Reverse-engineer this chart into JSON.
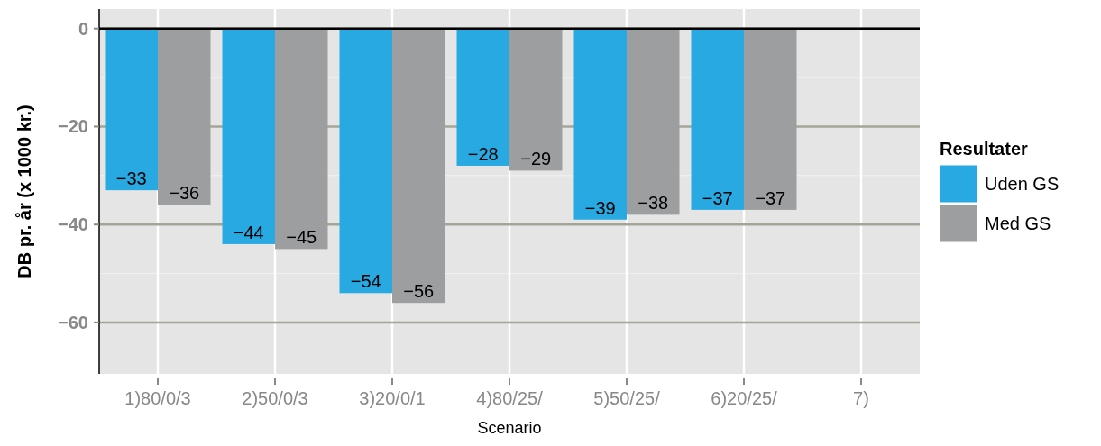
{
  "chart_data": {
    "type": "bar",
    "xlabel": "Scenario",
    "ylabel": "DB pr. år (x 1000 kr.)",
    "legend_title": "Resultater",
    "categories": [
      "1)80/0/3",
      "2)50/0/3",
      "3)20/0/1",
      "4)80/25/",
      "5)50/25/",
      "6)20/25/",
      "7)"
    ],
    "series": [
      {
        "name": "Uden GS",
        "color": "#29a9e1",
        "values": [
          -33,
          -44,
          -54,
          -28,
          -39,
          -37,
          null
        ]
      },
      {
        "name": "Med GS",
        "color": "#9d9ea0",
        "values": [
          -36,
          -45,
          -56,
          -29,
          -38,
          -37,
          null
        ]
      }
    ],
    "ylim": [
      -70.5,
      4
    ],
    "yticks": [
      0,
      -20,
      -40,
      -60
    ],
    "grid": true,
    "legend": "right",
    "data_labels": true
  }
}
